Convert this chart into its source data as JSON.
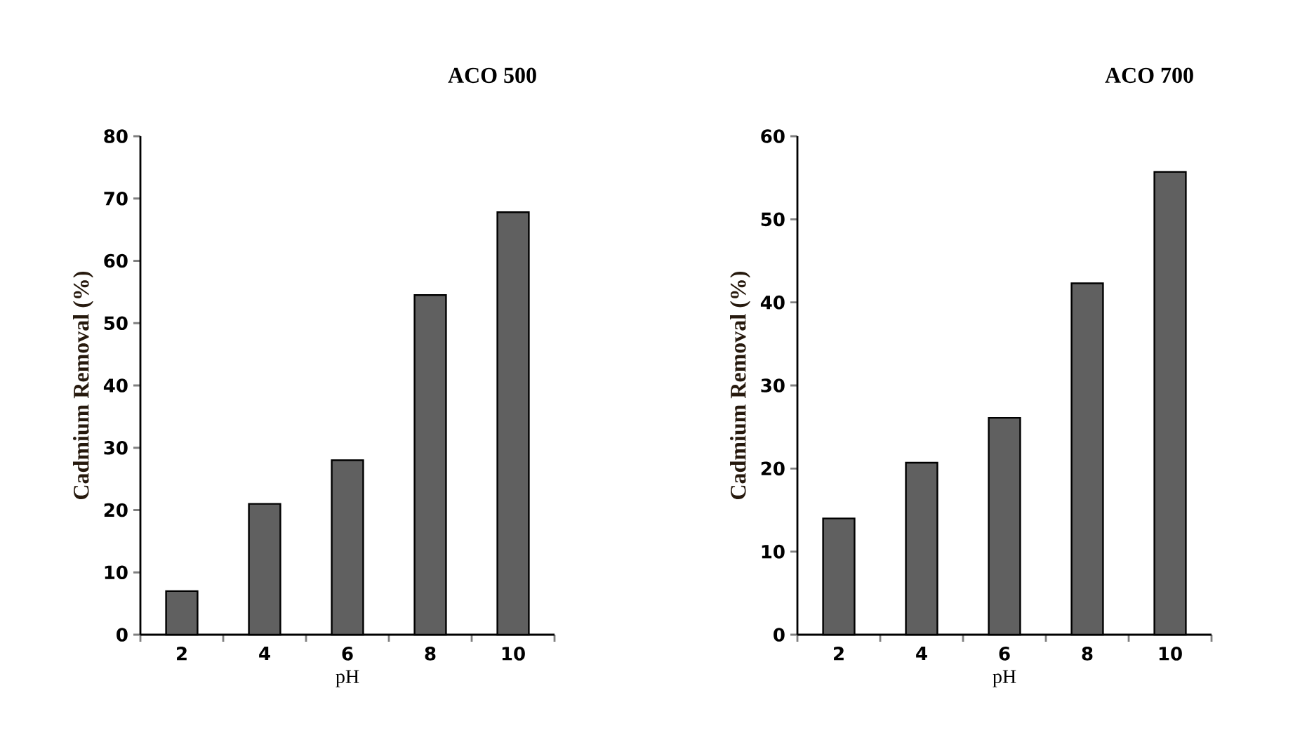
{
  "chart_data": [
    {
      "type": "bar",
      "title": "ACO 500",
      "xlabel": "pH",
      "ylabel": "Cadmium Removal (%)",
      "categories": [
        "2",
        "4",
        "6",
        "8",
        "10"
      ],
      "values": [
        7,
        21,
        28,
        54.5,
        67.8
      ],
      "color": "#606060",
      "ylim": [
        0,
        80
      ],
      "yticks": [
        0,
        10,
        20,
        30,
        40,
        50,
        60,
        70,
        80
      ],
      "grid": false
    },
    {
      "type": "bar",
      "title": "ACO 700",
      "xlabel": "pH",
      "ylabel": "Cadmium Removal (%)",
      "categories": [
        "2",
        "4",
        "6",
        "8",
        "10"
      ],
      "values": [
        14,
        20.7,
        26.1,
        42.3,
        55.7
      ],
      "color": "#606060",
      "ylim": [
        0,
        60
      ],
      "yticks": [
        0,
        10,
        20,
        30,
        40,
        50,
        60
      ],
      "grid": false
    }
  ]
}
